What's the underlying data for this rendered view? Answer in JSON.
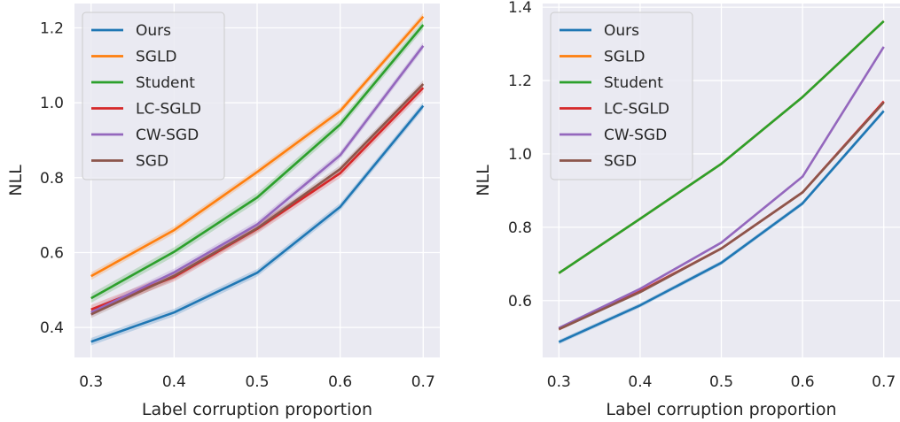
{
  "chart_data": [
    {
      "type": "line",
      "title": "",
      "xlabel": "Label corruption proportion",
      "ylabel": "NLL",
      "x": [
        0.3,
        0.4,
        0.5,
        0.6,
        0.7
      ],
      "xticks": [
        "0.3",
        "0.4",
        "0.5",
        "0.6",
        "0.7"
      ],
      "yticks": [
        "0.4",
        "0.6",
        "0.8",
        "1.0",
        "1.2"
      ],
      "xlim": [
        0.28,
        0.72
      ],
      "ylim": [
        0.32,
        1.265
      ],
      "grid": true,
      "legend": "top-left",
      "series": [
        {
          "name": "Ours",
          "color": "#1f77b4",
          "values": [
            0.362,
            0.44,
            0.546,
            0.722,
            0.992
          ],
          "band": 0.01
        },
        {
          "name": "SGLD",
          "color": "#ff7f0e",
          "values": [
            0.537,
            0.66,
            0.815,
            0.978,
            1.23
          ],
          "band": 0.01
        },
        {
          "name": "Student",
          "color": "#2ca02c",
          "values": [
            0.478,
            0.602,
            0.747,
            0.942,
            1.208
          ],
          "band": 0.012
        },
        {
          "name": "LC-SGLD",
          "color": "#d62728",
          "values": [
            0.448,
            0.535,
            0.663,
            0.812,
            1.04
          ],
          "band": 0.012
        },
        {
          "name": "CW-SGD",
          "color": "#9467bd",
          "values": [
            0.44,
            0.547,
            0.675,
            0.86,
            1.152
          ],
          "band": 0.01
        },
        {
          "name": "SGD",
          "color": "#8c564b",
          "values": [
            0.435,
            0.538,
            0.665,
            0.823,
            1.05
          ],
          "band": 0.01
        }
      ]
    },
    {
      "type": "line",
      "title": "",
      "xlabel": "Label corruption proportion",
      "ylabel": "NLL",
      "x": [
        0.3,
        0.4,
        0.5,
        0.6,
        0.7
      ],
      "xticks": [
        "0.3",
        "0.4",
        "0.5",
        "0.6",
        "0.7"
      ],
      "yticks": [
        "0.6",
        "0.8",
        "1.0",
        "1.2",
        "1.4"
      ],
      "xlim": [
        0.28,
        0.72
      ],
      "ylim": [
        0.445,
        1.41
      ],
      "grid": true,
      "legend": "top-left",
      "series": [
        {
          "name": "Ours",
          "color": "#1f77b4",
          "values": [
            0.487,
            0.587,
            0.703,
            0.865,
            1.117
          ],
          "band": 0.006
        },
        {
          "name": "SGLD",
          "color": "#ff7f0e",
          "values": [
            0.675,
            0.823,
            0.973,
            1.155,
            1.362
          ],
          "band": 0.004
        },
        {
          "name": "Student",
          "color": "#2ca02c",
          "values": [
            0.675,
            0.823,
            0.973,
            1.155,
            1.362
          ],
          "band": 0.004
        },
        {
          "name": "LC-SGLD",
          "color": "#d62728",
          "values": [
            0.522,
            0.625,
            0.742,
            0.895,
            1.143
          ],
          "band": 0.004
        },
        {
          "name": "CW-SGD",
          "color": "#9467bd",
          "values": [
            0.525,
            0.632,
            0.758,
            0.938,
            1.292
          ],
          "band": 0.004
        },
        {
          "name": "SGD",
          "color": "#8c564b",
          "values": [
            0.522,
            0.623,
            0.742,
            0.895,
            1.14
          ],
          "band": 0.004
        }
      ]
    }
  ]
}
